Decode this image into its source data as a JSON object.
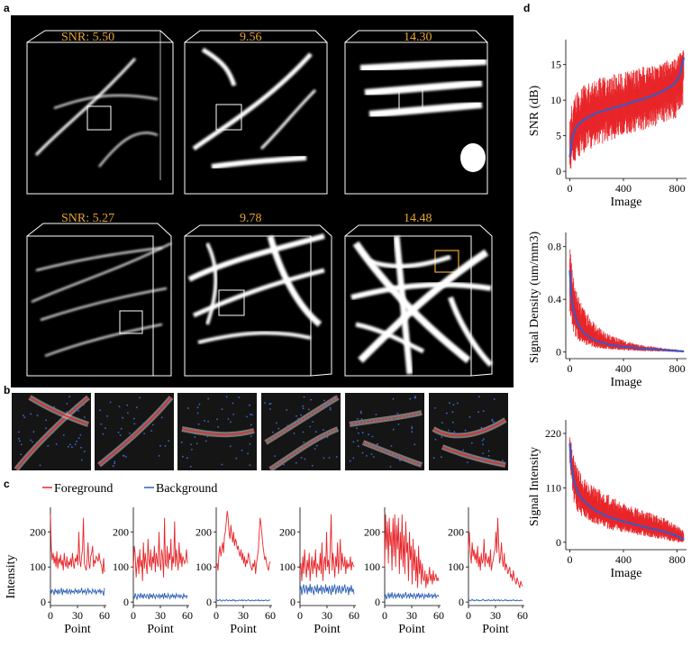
{
  "panels": {
    "a": "a",
    "b": "b",
    "c": "c",
    "d": "d"
  },
  "colors": {
    "foreground": "#e8262a",
    "background_line": "#2d5fb5",
    "fit_line": "#3f57c0",
    "snr_text": "#e8a532",
    "image_bg": "#000000"
  },
  "panel_a": {
    "top_row_labels": [
      "SNR: 5.50",
      "9.56",
      "14.30"
    ],
    "bottom_row_labels": [
      "SNR: 5.27",
      "9.78",
      "14.48"
    ]
  },
  "panel_c": {
    "legend": {
      "foreground": "Foreground",
      "background": "Background"
    },
    "ylabel": "Intensity",
    "xlabel": "Point",
    "xticks": [
      "0",
      "30",
      "60"
    ],
    "yticks": [
      "0",
      "100",
      "200"
    ]
  },
  "chart_data": [
    {
      "type": "line",
      "panel": "c1",
      "title": "",
      "xlabel": "Point",
      "ylabel": "Intensity",
      "xlim": [
        0,
        60
      ],
      "ylim": [
        -10,
        270
      ],
      "series": [
        {
          "name": "Foreground",
          "values": [
            250,
            150,
            120,
            140,
            110,
            130,
            100,
            145,
            95,
            125,
            110,
            135,
            105,
            120,
            90,
            140,
            110,
            100,
            130,
            95,
            115,
            105,
            125,
            100,
            140,
            110,
            95,
            125,
            115,
            135,
            105,
            200,
            120,
            100,
            130,
            150,
            240,
            110,
            100,
            90,
            120,
            170,
            110,
            95,
            130,
            140,
            160,
            100,
            120,
            110,
            130,
            125,
            115,
            140,
            120,
            110,
            100,
            80,
            125,
            85
          ]
        },
        {
          "name": "Background",
          "values": [
            40,
            25,
            35,
            30,
            20,
            38,
            28,
            33,
            22,
            36,
            25,
            30,
            40,
            20,
            35,
            28,
            32,
            26,
            38,
            24,
            30,
            36,
            22,
            34,
            28,
            31,
            25,
            37,
            29,
            33,
            23,
            36,
            27,
            30,
            40,
            25,
            32,
            28,
            35,
            22,
            30,
            38,
            26,
            33,
            29,
            24,
            37,
            31,
            27,
            35,
            23,
            30,
            34,
            28,
            36,
            25,
            32,
            30,
            18,
            40
          ]
        }
      ]
    },
    {
      "type": "line",
      "panel": "c2",
      "xlabel": "Point",
      "ylabel": "",
      "xlim": [
        0,
        60
      ],
      "ylim": [
        -10,
        270
      ],
      "series": [
        {
          "name": "Foreground",
          "values": [
            90,
            160,
            140,
            70,
            110,
            130,
            80,
            150,
            100,
            120,
            60,
            170,
            95,
            140,
            110,
            80,
            180,
            120,
            100,
            150,
            90,
            130,
            110,
            160,
            85,
            140,
            120,
            100,
            200,
            110,
            90,
            150,
            130,
            70,
            240,
            110,
            100,
            160,
            95,
            140,
            120,
            180,
            90,
            130,
            110,
            230,
            100,
            150,
            120,
            90,
            170,
            110,
            140,
            100,
            130,
            120,
            110,
            120,
            150,
            110
          ]
        },
        {
          "name": "Background",
          "values": [
            20,
            10,
            25,
            15,
            8,
            22,
            18,
            12,
            26,
            14,
            20,
            10,
            24,
            16,
            12,
            22,
            18,
            8,
            25,
            14,
            20,
            12,
            23,
            16,
            10,
            21,
            17,
            13,
            24,
            11,
            19,
            15,
            22,
            9,
            26,
            14,
            18,
            12,
            24,
            16,
            10,
            20,
            15,
            22,
            13,
            19,
            11,
            24,
            17,
            14,
            21,
            12,
            20,
            16,
            10,
            23,
            15,
            18,
            12,
            20
          ]
        }
      ]
    },
    {
      "type": "line",
      "panel": "c3",
      "xlabel": "Point",
      "ylabel": "",
      "xlim": [
        0,
        60
      ],
      "ylim": [
        -10,
        270
      ],
      "series": [
        {
          "name": "Foreground",
          "values": [
            100,
            110,
            90,
            140,
            160,
            130,
            150,
            170,
            140,
            190,
            200,
            230,
            260,
            240,
            200,
            180,
            220,
            190,
            170,
            200,
            160,
            180,
            170,
            150,
            160,
            140,
            130,
            150,
            120,
            140,
            110,
            130,
            100,
            120,
            110,
            140,
            130,
            110,
            100,
            90,
            110,
            100,
            120,
            80,
            110,
            130,
            150,
            200,
            240,
            220,
            190,
            160,
            140,
            120,
            130,
            110,
            100,
            90,
            110,
            115
          ]
        },
        {
          "name": "Background",
          "values": [
            4,
            6,
            3,
            5,
            7,
            4,
            2,
            5,
            6,
            3,
            4,
            7,
            5,
            3,
            6,
            4,
            5,
            3,
            7,
            4,
            6,
            2,
            5,
            4,
            3,
            6,
            5,
            4,
            7,
            3,
            5,
            6,
            4,
            3,
            5,
            7,
            4,
            5,
            3,
            6,
            4,
            5,
            3,
            6,
            5,
            4,
            7,
            3,
            5,
            4,
            6,
            3,
            5,
            4,
            6,
            5,
            3,
            4,
            6,
            5
          ]
        }
      ]
    },
    {
      "type": "line",
      "panel": "c4",
      "xlabel": "Point",
      "ylabel": "",
      "xlim": [
        0,
        60
      ],
      "ylim": [
        -10,
        270
      ],
      "series": [
        {
          "name": "Foreground",
          "values": [
            90,
            110,
            60,
            130,
            80,
            150,
            100,
            70,
            120,
            90,
            140,
            60,
            100,
            130,
            80,
            120,
            95,
            150,
            70,
            110,
            100,
            90,
            140,
            80,
            170,
            60,
            110,
            130,
            90,
            200,
            100,
            120,
            80,
            160,
            250,
            90,
            140,
            110,
            70,
            130,
            100,
            170,
            80,
            120,
            180,
            90,
            140,
            110,
            100,
            130,
            80,
            120,
            95,
            110,
            100,
            130,
            90,
            115,
            105,
            100
          ]
        },
        {
          "name": "Background",
          "values": [
            30,
            45,
            20,
            40,
            50,
            25,
            38,
            48,
            22,
            42,
            30,
            52,
            26,
            44,
            34,
            20,
            46,
            38,
            28,
            50,
            24,
            40,
            32,
            48,
            22,
            44,
            36,
            26,
            50,
            30,
            42,
            24,
            46,
            34,
            20,
            48,
            28,
            40,
            50,
            22,
            38,
            44,
            26,
            48,
            32,
            24,
            46,
            30,
            40,
            50,
            26,
            36,
            44,
            20,
            42,
            30,
            48,
            28,
            38,
            22
          ]
        }
      ]
    },
    {
      "type": "line",
      "panel": "c5",
      "xlabel": "Point",
      "ylabel": "",
      "xlim": [
        0,
        60
      ],
      "ylim": [
        -10,
        270
      ],
      "series": [
        {
          "name": "Foreground",
          "values": [
            100,
            250,
            150,
            230,
            110,
            240,
            160,
            200,
            90,
            240,
            130,
            250,
            100,
            220,
            150,
            240,
            80,
            200,
            120,
            250,
            100,
            190,
            80,
            230,
            140,
            170,
            60,
            200,
            120,
            160,
            50,
            180,
            90,
            150,
            60,
            130,
            40,
            160,
            80,
            120,
            50,
            110,
            70,
            60,
            90,
            40,
            80,
            50,
            70,
            100,
            60,
            80,
            50,
            90,
            60,
            70,
            80,
            60,
            70,
            60
          ]
        },
        {
          "name": "Background",
          "values": [
            12,
            20,
            8,
            18,
            25,
            10,
            22,
            15,
            28,
            12,
            18,
            24,
            10,
            20,
            16,
            26,
            12,
            22,
            18,
            9,
            24,
            14,
            20,
            28,
            12,
            18,
            22,
            10,
            26,
            16,
            20,
            12,
            24,
            18,
            10,
            22,
            16,
            26,
            12,
            20,
            14,
            24,
            18,
            10,
            22,
            16,
            20,
            12,
            26,
            14,
            18,
            22,
            10,
            20,
            16,
            24,
            12,
            18,
            20,
            15
          ]
        }
      ]
    },
    {
      "type": "line",
      "panel": "c6",
      "xlabel": "Point",
      "ylabel": "",
      "xlim": [
        0,
        60
      ],
      "ylim": [
        -10,
        270
      ],
      "series": [
        {
          "name": "Foreground",
          "values": [
            150,
            200,
            140,
            110,
            170,
            130,
            150,
            120,
            140,
            110,
            160,
            100,
            130,
            90,
            140,
            110,
            120,
            180,
            100,
            140,
            120,
            110,
            130,
            100,
            150,
            90,
            110,
            120,
            140,
            150,
            200,
            140,
            240,
            160,
            110,
            130,
            170,
            120,
            100,
            140,
            90,
            110,
            100,
            80,
            90,
            100,
            70,
            80,
            60,
            90,
            70,
            60,
            50,
            70,
            60,
            50,
            40,
            60,
            50,
            45
          ]
        },
        {
          "name": "Background",
          "values": [
            4,
            6,
            3,
            5,
            8,
            4,
            6,
            3,
            5,
            7,
            4,
            6,
            3,
            5,
            4,
            6,
            8,
            4,
            5,
            3,
            6,
            4,
            7,
            5,
            3,
            6,
            4,
            5,
            8,
            3,
            5,
            6,
            4,
            7,
            3,
            5,
            6,
            4,
            3,
            5,
            7,
            4,
            6,
            3,
            5,
            4,
            6,
            3,
            5,
            7,
            4,
            5,
            3,
            6,
            4,
            5,
            3,
            6,
            4,
            5
          ]
        }
      ]
    },
    {
      "type": "line",
      "panel": "d1",
      "xlabel": "Image",
      "ylabel": "SNR (dB)",
      "xlim": [
        -30,
        870
      ],
      "ylim": [
        -1,
        18
      ],
      "xticks": [
        "0",
        "400",
        "800"
      ],
      "yticks": [
        "0",
        "5",
        "10",
        "15"
      ],
      "mean_curve": {
        "x": [
          0,
          20,
          50,
          100,
          200,
          300,
          400,
          500,
          600,
          700,
          780,
          820,
          850
        ],
        "y": [
          2,
          5,
          6.3,
          7.2,
          8.2,
          8.8,
          9.3,
          9.9,
          10.5,
          11.3,
          12.3,
          13.5,
          16
        ]
      },
      "error_band": {
        "x": [
          0,
          50,
          100,
          200,
          300,
          400,
          500,
          600,
          700,
          800,
          850
        ],
        "lower": [
          0,
          1.5,
          2.5,
          3.5,
          4.2,
          5,
          5.5,
          6,
          6.8,
          7.5,
          9
        ],
        "upper": [
          9,
          11,
          12,
          13,
          13.5,
          14,
          14.5,
          15,
          15.5,
          16,
          17.5
        ]
      }
    },
    {
      "type": "line",
      "panel": "d2",
      "xlabel": "Image",
      "ylabel": "Signal Density (um/mm3)",
      "xlim": [
        -30,
        870
      ],
      "ylim": [
        -0.05,
        0.88
      ],
      "xticks": [
        "0",
        "400",
        "800"
      ],
      "yticks": [
        "0",
        "0.4",
        "0.8"
      ],
      "mean_curve": {
        "x": [
          0,
          10,
          25,
          50,
          75,
          100,
          150,
          200,
          300,
          400,
          500,
          600,
          700,
          800,
          850
        ],
        "y": [
          0.62,
          0.45,
          0.33,
          0.24,
          0.19,
          0.15,
          0.11,
          0.085,
          0.055,
          0.04,
          0.03,
          0.022,
          0.015,
          0.008,
          0.005
        ]
      },
      "error_band": {
        "x": [
          0,
          25,
          50,
          100,
          200,
          300,
          400,
          500,
          600,
          700,
          800,
          850
        ],
        "lower": [
          0.3,
          0.15,
          0.1,
          0.06,
          0.03,
          0.02,
          0.012,
          0.008,
          0.005,
          0.003,
          0.001,
          0
        ],
        "upper": [
          0.82,
          0.62,
          0.48,
          0.34,
          0.2,
          0.13,
          0.09,
          0.06,
          0.045,
          0.03,
          0.02,
          0.012
        ]
      }
    },
    {
      "type": "line",
      "panel": "d3",
      "xlabel": "Image",
      "ylabel": "Signal Intensity",
      "xlim": [
        -30,
        870
      ],
      "ylim": [
        -15,
        240
      ],
      "xticks": [
        "0",
        "400",
        "800"
      ],
      "yticks": [
        "0",
        "110",
        "220"
      ],
      "mean_curve": {
        "x": [
          0,
          10,
          30,
          60,
          100,
          150,
          200,
          300,
          400,
          500,
          600,
          700,
          800,
          850
        ],
        "y": [
          200,
          160,
          125,
          100,
          85,
          72,
          63,
          50,
          42,
          35,
          28,
          22,
          13,
          5
        ]
      },
      "error_band": {
        "x": [
          0,
          30,
          60,
          100,
          200,
          300,
          400,
          500,
          600,
          700,
          800,
          850
        ],
        "lower": [
          150,
          80,
          60,
          50,
          35,
          25,
          20,
          15,
          10,
          5,
          0,
          0
        ],
        "upper": [
          215,
          175,
          150,
          130,
          110,
          95,
          80,
          70,
          60,
          50,
          35,
          25
        ]
      }
    }
  ]
}
